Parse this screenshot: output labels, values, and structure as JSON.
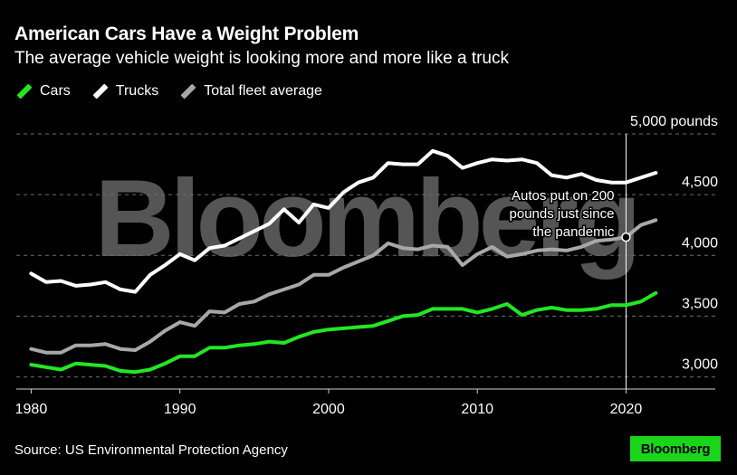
{
  "header": {
    "title": "American Cars Have a Weight Problem",
    "subtitle": "The average vehicle weight is looking more and more like a truck"
  },
  "legend": [
    {
      "label": "Cars",
      "color": "#22e722"
    },
    {
      "label": "Trucks",
      "color": "#ffffff"
    },
    {
      "label": "Total fleet average",
      "color": "#a8a8a8"
    }
  ],
  "footer": {
    "source": "Source: US Environmental Protection Agency",
    "brand": "Bloomberg"
  },
  "watermark": "Bloomberg",
  "chart_data": {
    "type": "line",
    "title": "American Cars Have a Weight Problem",
    "subtitle": "The average vehicle weight is looking more and more like a truck",
    "x": [
      1980,
      1981,
      1982,
      1983,
      1984,
      1985,
      1986,
      1987,
      1988,
      1989,
      1990,
      1991,
      1992,
      1993,
      1994,
      1995,
      1996,
      1997,
      1998,
      1999,
      2000,
      2001,
      2002,
      2003,
      2004,
      2005,
      2006,
      2007,
      2008,
      2009,
      2010,
      2011,
      2012,
      2013,
      2014,
      2015,
      2016,
      2017,
      2018,
      2019,
      2020,
      2021,
      2022
    ],
    "xlim": [
      1979,
      2026
    ],
    "ylim": [
      2900,
      5000
    ],
    "x_ticks": [
      {
        "value": 1980,
        "label": "1980"
      },
      {
        "value": 1990,
        "label": "1990"
      },
      {
        "value": 2000,
        "label": "2000"
      },
      {
        "value": 2010,
        "label": "2010"
      },
      {
        "value": 2020,
        "label": "2020"
      }
    ],
    "y_ticks": [
      {
        "value": 3000,
        "label": "3,000"
      },
      {
        "value": 3500,
        "label": "3,500"
      },
      {
        "value": 4000,
        "label": "4,000"
      },
      {
        "value": 4500,
        "label": "4,500"
      },
      {
        "value": 5000,
        "label": "5,000 pounds"
      }
    ],
    "grid": true,
    "legend_position": "top-left",
    "series": [
      {
        "name": "Trucks",
        "color": "#ffffff",
        "values": [
          3850,
          3780,
          3790,
          3750,
          3760,
          3780,
          3720,
          3700,
          3840,
          3920,
          4010,
          3960,
          4060,
          4080,
          4140,
          4200,
          4260,
          4380,
          4270,
          4420,
          4390,
          4520,
          4600,
          4640,
          4760,
          4750,
          4750,
          4860,
          4820,
          4720,
          4760,
          4790,
          4780,
          4790,
          4760,
          4660,
          4640,
          4670,
          4620,
          4600,
          4600,
          4640,
          4680
        ]
      },
      {
        "name": "Total fleet average",
        "color": "#a8a8a8",
        "values": [
          3230,
          3200,
          3200,
          3260,
          3260,
          3270,
          3230,
          3220,
          3290,
          3380,
          3450,
          3420,
          3540,
          3530,
          3600,
          3620,
          3680,
          3720,
          3760,
          3840,
          3840,
          3900,
          3950,
          4000,
          4100,
          4060,
          4050,
          4080,
          4070,
          3920,
          4010,
          4070,
          3990,
          4010,
          4040,
          4050,
          4040,
          4070,
          4120,
          4130,
          4150,
          4250,
          4290
        ]
      },
      {
        "name": "Cars",
        "color": "#22e722",
        "values": [
          3100,
          3080,
          3060,
          3110,
          3100,
          3090,
          3050,
          3040,
          3060,
          3110,
          3170,
          3170,
          3240,
          3240,
          3260,
          3270,
          3290,
          3280,
          3330,
          3370,
          3390,
          3400,
          3410,
          3420,
          3460,
          3500,
          3510,
          3560,
          3560,
          3560,
          3530,
          3560,
          3600,
          3510,
          3550,
          3570,
          3550,
          3550,
          3560,
          3590,
          3590,
          3620,
          3690
        ]
      }
    ],
    "annotation": {
      "text_lines": [
        "Autos put on 200",
        "pounds just since",
        "the pandemic"
      ],
      "x": 2020
    }
  }
}
